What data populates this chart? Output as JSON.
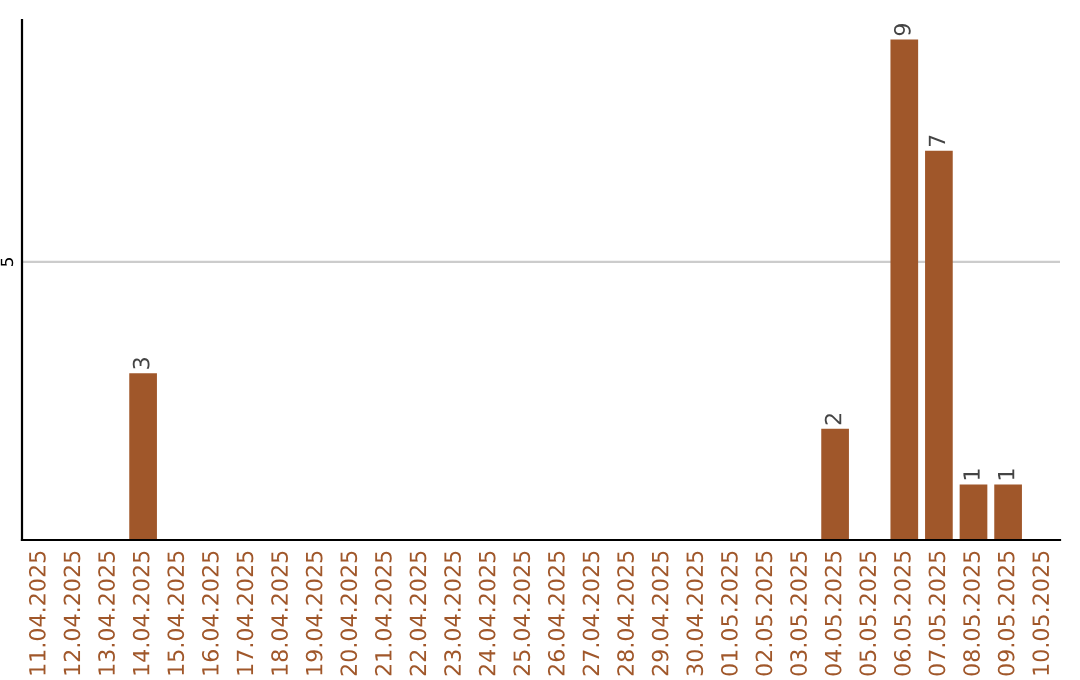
{
  "chart_data": {
    "type": "bar",
    "categories": [
      "11.04.2025",
      "12.04.2025",
      "13.04.2025",
      "14.04.2025",
      "15.04.2025",
      "16.04.2025",
      "17.04.2025",
      "18.04.2025",
      "19.04.2025",
      "20.04.2025",
      "21.04.2025",
      "22.04.2025",
      "23.04.2025",
      "24.04.2025",
      "25.04.2025",
      "26.04.2025",
      "27.04.2025",
      "28.04.2025",
      "29.04.2025",
      "30.04.2025",
      "01.05.2025",
      "02.05.2025",
      "03.05.2025",
      "04.05.2025",
      "05.05.2025",
      "06.05.2025",
      "07.05.2025",
      "08.05.2025",
      "09.05.2025",
      "10.05.2025"
    ],
    "values": [
      0,
      0,
      0,
      3,
      0,
      0,
      0,
      0,
      0,
      0,
      0,
      0,
      0,
      0,
      0,
      0,
      0,
      0,
      0,
      0,
      0,
      0,
      0,
      2,
      0,
      9,
      7,
      1,
      1,
      0
    ],
    "value_labels": [
      null,
      null,
      null,
      "3",
      null,
      null,
      null,
      null,
      null,
      null,
      null,
      null,
      null,
      null,
      null,
      null,
      null,
      null,
      null,
      null,
      null,
      null,
      null,
      "2",
      null,
      "9",
      "7",
      "1",
      "1",
      null
    ],
    "color": "#a0572a",
    "ylim": [
      0,
      9.35
    ],
    "yticks": [
      5
    ],
    "grid": "y"
  }
}
